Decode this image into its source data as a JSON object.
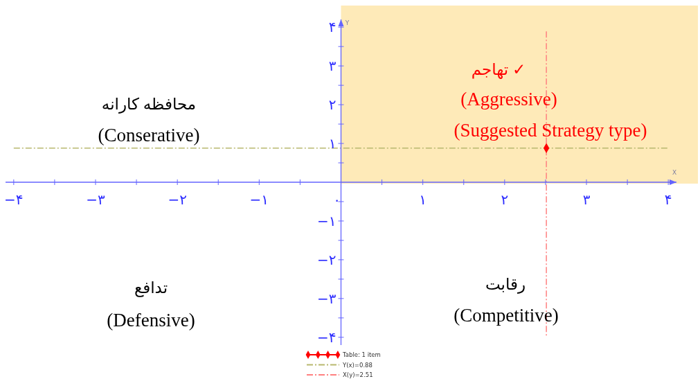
{
  "chart_data": {
    "type": "scatter",
    "xlabel": "X",
    "ylabel": "Y",
    "xlim": [
      -4.1,
      4.1
    ],
    "ylim": [
      -4.2,
      4.2
    ],
    "xticks": [
      {
        "value": -4,
        "label": "−۴"
      },
      {
        "value": -3.5,
        "label": null
      },
      {
        "value": -3,
        "label": "−۳"
      },
      {
        "value": -2.5,
        "label": null
      },
      {
        "value": -2,
        "label": "−۲"
      },
      {
        "value": -1.5,
        "label": null
      },
      {
        "value": -1,
        "label": "−۱"
      },
      {
        "value": -0.5,
        "label": null
      },
      {
        "value": 0,
        "label": "۰"
      },
      {
        "value": 0.5,
        "label": null
      },
      {
        "value": 1,
        "label": "۱"
      },
      {
        "value": 1.5,
        "label": null
      },
      {
        "value": 2,
        "label": "۲"
      },
      {
        "value": 2.5,
        "label": null
      },
      {
        "value": 3,
        "label": "۳"
      },
      {
        "value": 3.5,
        "label": null
      },
      {
        "value": 4,
        "label": "۴"
      }
    ],
    "yticks": [
      {
        "value": -4,
        "label": "−۴"
      },
      {
        "value": -3.5,
        "label": null
      },
      {
        "value": -3,
        "label": "−۳"
      },
      {
        "value": -2.5,
        "label": null
      },
      {
        "value": -2,
        "label": "−۲"
      },
      {
        "value": -1.5,
        "label": null
      },
      {
        "value": -1,
        "label": "−۱"
      },
      {
        "value": -0.5,
        "label": null
      },
      {
        "value": 0.5,
        "label": null
      },
      {
        "value": 1,
        "label": "۱"
      },
      {
        "value": 1.5,
        "label": null
      },
      {
        "value": 2,
        "label": "۲"
      },
      {
        "value": 2.5,
        "label": null
      },
      {
        "value": 3,
        "label": "۳"
      },
      {
        "value": 3.5,
        "label": null
      },
      {
        "value": 4,
        "label": "۴"
      }
    ],
    "series": [
      {
        "name": "Table: 1 item",
        "color": "#ff0000",
        "x": [
          2.51
        ],
        "values": [
          0.88
        ]
      }
    ],
    "marker": "diamond",
    "ref_lines": [
      {
        "axis": "y",
        "value": 0.88,
        "label": "Y(x)=0.88",
        "color": "#b8b86e",
        "line_style": "dashed"
      },
      {
        "axis": "x",
        "value": 2.51,
        "label": "X(y)=2.51",
        "color": "#ff8080",
        "line_style": "dashed"
      }
    ],
    "annotations": [
      "محافظه کارانه",
      "(Conserative)",
      "تهاجم ✓",
      "(Aggressive)",
      "(Suggested Strategy type)",
      "تدافع",
      "(Defensive)",
      "رقابت",
      "(Competitive)"
    ],
    "legend": "bottom"
  }
}
